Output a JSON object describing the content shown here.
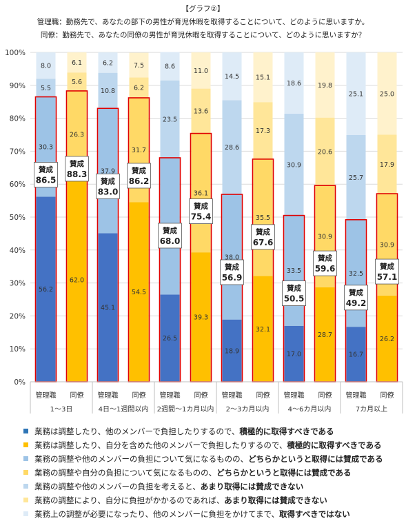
{
  "chart_data": {
    "type": "bar",
    "title_lines": [
      "【グラフ②】",
      "管理職：勤務先で、あなたの部下の男性が育児休暇を取得することについて、どのように思いますか。",
      "同僚：勤務先で、あなたの同僚の男性が育児休暇を取得することについて、どのように思いますか？"
    ],
    "y_ticks": [
      "0%",
      "10%",
      "20%",
      "30%",
      "40%",
      "50%",
      "60%",
      "70%",
      "80%",
      "90%",
      "100%"
    ],
    "ylim": [
      0,
      100
    ],
    "group_labels": [
      "1～3日",
      "4日～1週間以内",
      "2週間～1カ月以内",
      "2～3カ月以内",
      "4～6カ月以内",
      "7カ月以上"
    ],
    "approval_label": "賛成",
    "bars": [
      {
        "role": "管理職",
        "group": 0,
        "values": [
          56.2,
          30.3,
          5.5,
          8.0
        ],
        "approval": 86.5
      },
      {
        "role": "同僚",
        "group": 0,
        "values": [
          62.0,
          26.3,
          5.6,
          6.1
        ],
        "approval": 88.3
      },
      {
        "role": "管理職",
        "group": 1,
        "values": [
          45.1,
          37.9,
          10.8,
          6.2
        ],
        "approval": 83.0
      },
      {
        "role": "同僚",
        "group": 1,
        "values": [
          54.5,
          31.7,
          6.2,
          7.5
        ],
        "approval": 86.2
      },
      {
        "role": "管理職",
        "group": 2,
        "values": [
          26.5,
          41.5,
          23.5,
          8.6
        ],
        "approval": 68.0
      },
      {
        "role": "同僚",
        "group": 2,
        "values": [
          39.3,
          36.1,
          13.6,
          11.0
        ],
        "approval": 75.4
      },
      {
        "role": "管理職",
        "group": 3,
        "values": [
          18.9,
          38.0,
          28.6,
          14.5
        ],
        "approval": 56.9
      },
      {
        "role": "同僚",
        "group": 3,
        "values": [
          32.1,
          35.5,
          17.3,
          15.1
        ],
        "approval": 67.6
      },
      {
        "role": "管理職",
        "group": 4,
        "values": [
          17.0,
          33.5,
          30.9,
          18.6
        ],
        "approval": 50.5
      },
      {
        "role": "同僚",
        "group": 4,
        "values": [
          28.7,
          30.9,
          20.6,
          19.8
        ],
        "approval": 59.6
      },
      {
        "role": "管理職",
        "group": 5,
        "values": [
          16.7,
          32.5,
          25.7,
          25.1
        ],
        "approval": 49.2
      },
      {
        "role": "同僚",
        "group": 5,
        "values": [
          26.2,
          30.9,
          17.9,
          25.0
        ],
        "approval": 57.1
      }
    ],
    "colors": {
      "manager": [
        "#4472c4",
        "#9dc3e6",
        "#bdd7ee",
        "#deebf7"
      ],
      "colleague": [
        "#ffc000",
        "#ffd966",
        "#ffe699",
        "#fff2cc"
      ],
      "approval_outline": "#e00000",
      "grid": "#d9d9d9"
    },
    "grid": true,
    "legend": [
      {
        "color": "#2e75b6",
        "text": "業務は調整したり、他のメンバーで負担したりするので、",
        "bold": "積極的に取得すべきである"
      },
      {
        "color": "#ffc000",
        "text": "業務は調整したり、自分を含めた他のメンバーで負担したりするので、",
        "bold": "積極的に取得すべきである"
      },
      {
        "color": "#9dc3e6",
        "text": "業務の調整や他のメンバーの負担について気になるものの、",
        "bold": "どちらかというと取得には賛成である"
      },
      {
        "color": "#ffd966",
        "text": "業務の調整や自分の負担について気になるものの、",
        "bold": "どちらかというと取得には賛成である"
      },
      {
        "color": "#bdd7ee",
        "text": "業務の調整や他のメンバーの負担を考えると、",
        "bold": "あまり取得には賛成できない"
      },
      {
        "color": "#ffe699",
        "text": "業務の調整により、自分に負担がかかるのであれば、",
        "bold": "あまり取得には賛成できない"
      },
      {
        "color": "#deebf7",
        "text": "業務上の調整が必要になったり、他のメンバーに負担をかけてまで、",
        "bold": "取得すべきではない"
      }
    ]
  }
}
